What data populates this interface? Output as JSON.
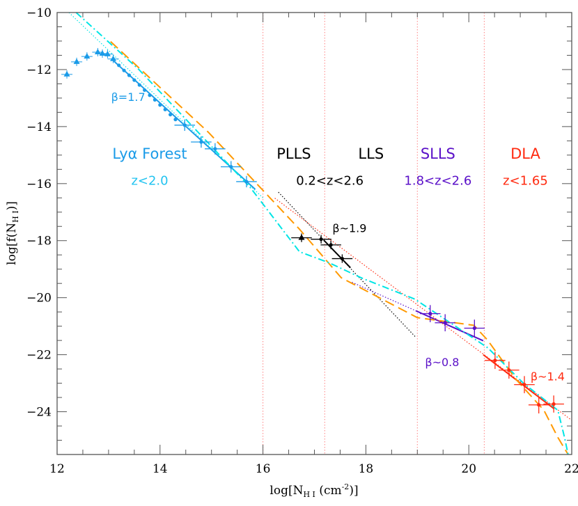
{
  "chart_data": {
    "type": "scatter",
    "xlabel": "log[N_HI (cm^-2)]",
    "ylabel": "log[f(N_HI)]",
    "xlim": [
      12,
      22
    ],
    "ylim": [
      -25.5,
      -10
    ],
    "x_ticks": [
      "12",
      "14",
      "16",
      "18",
      "20",
      "22"
    ],
    "y_ticks": [
      "-10",
      "-12",
      "-14",
      "-16",
      "-18",
      "-20",
      "-22",
      "-24"
    ],
    "grid": false,
    "colors": {
      "lya": "#1a9be8",
      "lya_sub": "#22c3f0",
      "plls": "#000000",
      "slls": "#5a10c8",
      "dla": "#ff2a10",
      "orange": "#ff9900",
      "cyan": "#00e5e5",
      "vline": "#ff8080"
    },
    "vertical_lines": [
      16.0,
      17.2,
      19.0,
      20.3
    ],
    "regions": [
      {
        "label": "Lyα Forest",
        "sub": "z<2.0",
        "color": "#1a9be8",
        "subcolor": "#22c3f0",
        "x": 13.8
      },
      {
        "label": "PLLS",
        "sub": "",
        "color": "#000000",
        "x": 16.6
      },
      {
        "label": "LLS",
        "sub": "",
        "color": "#000000",
        "x": 18.1
      },
      {
        "label": "SLLS",
        "sub": "1.8<z<2.6",
        "color": "#5a10c8",
        "x": 19.4
      },
      {
        "label": "DLA",
        "sub": "z<1.65",
        "color": "#ff2a10",
        "x": 21.1
      }
    ],
    "plls_lls_sub": "0.2<z<2.6",
    "annotations": [
      {
        "text": "β=1.7",
        "x": 13.05,
        "y": -12.95,
        "color": "#1a9be8"
      },
      {
        "text": "β~1.9",
        "x": 17.35,
        "y": -17.55,
        "color": "#000000"
      },
      {
        "text": "β~0.8",
        "x": 19.15,
        "y": -22.25,
        "color": "#5a10c8"
      },
      {
        "text": "β~1.4",
        "x": 21.2,
        "y": -22.75,
        "color": "#ff2a10"
      }
    ],
    "series": [
      {
        "id": "lya_triangles",
        "marker": "triangle",
        "color": "#1a9be8",
        "points": [
          [
            12.19,
            -12.17
          ],
          [
            12.38,
            -11.73
          ],
          [
            12.58,
            -11.54
          ],
          [
            12.79,
            -11.39
          ],
          [
            12.88,
            -11.44
          ],
          [
            12.98,
            -11.46
          ],
          [
            13.09,
            -11.63
          ]
        ]
      },
      {
        "id": "lya_dots",
        "marker": "dot",
        "color": "#1a9be8",
        "points": [
          [
            13.2,
            -11.85
          ],
          [
            13.3,
            -12.03
          ],
          [
            13.4,
            -12.2
          ],
          [
            13.5,
            -12.37
          ],
          [
            13.6,
            -12.54
          ],
          [
            13.7,
            -12.72
          ],
          [
            13.8,
            -12.9
          ],
          [
            13.9,
            -13.06
          ],
          [
            14.0,
            -13.24
          ],
          [
            14.1,
            -13.4
          ],
          [
            14.2,
            -13.58
          ],
          [
            14.3,
            -13.75
          ]
        ]
      },
      {
        "id": "lya_crosses",
        "marker": "cross",
        "color": "#1a9be8",
        "points": [
          [
            14.48,
            -13.95
          ],
          [
            14.8,
            -14.54
          ],
          [
            15.07,
            -14.78
          ],
          [
            15.38,
            -15.41
          ],
          [
            15.68,
            -15.93
          ]
        ],
        "xerr": 0.2,
        "yerr": 0.2
      },
      {
        "id": "plls",
        "marker": "cross",
        "color": "#000000",
        "points": [
          [
            16.75,
            -17.9
          ],
          [
            17.13,
            -17.95
          ],
          [
            17.32,
            -18.15
          ],
          [
            17.54,
            -18.63
          ]
        ],
        "xerr": 0.2,
        "yerr": 0.15
      },
      {
        "id": "slls",
        "marker": "cross",
        "color": "#5a10c8",
        "points": [
          [
            19.25,
            -20.56
          ],
          [
            19.54,
            -20.88
          ],
          [
            20.11,
            -21.07
          ]
        ],
        "xerr": 0.2,
        "yerr": 0.3
      },
      {
        "id": "dla",
        "marker": "cross",
        "color": "#ff2a10",
        "points": [
          [
            20.51,
            -22.2
          ],
          [
            20.78,
            -22.54
          ],
          [
            21.08,
            -23.05
          ],
          [
            21.36,
            -23.76
          ],
          [
            21.65,
            -23.73
          ]
        ],
        "xerr": 0.2,
        "yerr": 0.3
      }
    ],
    "lines": [
      {
        "id": "lya_fit",
        "style": "solid",
        "color": "#1a9be8",
        "points": [
          [
            13.1,
            -11.7
          ],
          [
            15.85,
            -16.2
          ]
        ]
      },
      {
        "id": "lya_ext",
        "style": "dotted",
        "color": "#00e5e5",
        "points": [
          [
            12.23,
            -10.0
          ],
          [
            16.0,
            -16.5
          ]
        ]
      },
      {
        "id": "plls_fit",
        "style": "solid",
        "color": "#000000",
        "points": [
          [
            17.18,
            -17.98
          ],
          [
            17.7,
            -18.95
          ]
        ]
      },
      {
        "id": "plls_ext",
        "style": "dotted",
        "color": "#000000",
        "points": [
          [
            16.3,
            -16.3
          ],
          [
            17.18,
            -17.98
          ],
          [
            18.97,
            -21.39
          ]
        ]
      },
      {
        "id": "slls_fit",
        "style": "solid",
        "color": "#5a10c8",
        "points": [
          [
            18.97,
            -20.46
          ],
          [
            20.28,
            -21.51
          ]
        ]
      },
      {
        "id": "slls_ext",
        "style": "dotted",
        "color": "#5a10c8",
        "points": [
          [
            17.73,
            -19.46
          ],
          [
            18.97,
            -20.46
          ]
        ]
      },
      {
        "id": "dla_fit",
        "style": "solid",
        "color": "#ff2a10",
        "points": [
          [
            20.28,
            -22.0
          ],
          [
            21.66,
            -23.9
          ]
        ]
      },
      {
        "id": "dla_ext",
        "style": "dotted",
        "color": "#ff2a10",
        "points": [
          [
            16.23,
            -16.51
          ],
          [
            22.0,
            -24.3
          ]
        ]
      },
      {
        "id": "model_dashed",
        "style": "dashed",
        "color": "#ff9900",
        "points": [
          [
            13.04,
            -11.02
          ],
          [
            14.94,
            -14.2
          ],
          [
            16.71,
            -17.6
          ],
          [
            17.52,
            -19.3
          ],
          [
            19.0,
            -20.7
          ],
          [
            20.1,
            -20.97
          ],
          [
            20.37,
            -21.5
          ],
          [
            20.91,
            -22.85
          ],
          [
            21.46,
            -23.95
          ],
          [
            21.73,
            -24.9
          ],
          [
            21.93,
            -25.5
          ]
        ]
      },
      {
        "id": "model_dashdot",
        "style": "dashdot",
        "color": "#00e5e5",
        "points": [
          [
            12.37,
            -10.0
          ],
          [
            13.59,
            -12.0
          ],
          [
            15.76,
            -16.15
          ],
          [
            16.71,
            -18.39
          ],
          [
            17.29,
            -18.78
          ],
          [
            17.93,
            -19.32
          ],
          [
            18.95,
            -20.05
          ],
          [
            20.37,
            -21.76
          ],
          [
            21.05,
            -22.98
          ],
          [
            21.73,
            -23.95
          ],
          [
            21.86,
            -24.9
          ],
          [
            21.93,
            -25.5
          ]
        ]
      }
    ]
  }
}
